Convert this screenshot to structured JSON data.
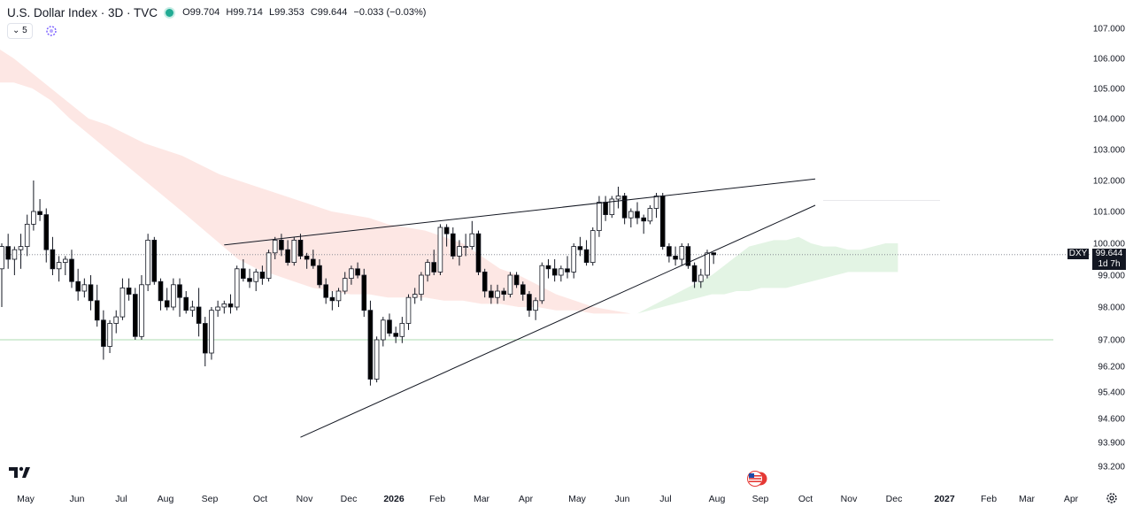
{
  "legend": {
    "symbol": "U.S. Dollar Index · 3D · TVC",
    "open": "O99.704",
    "high": "H99.714",
    "low": "L99.353",
    "close": "C99.644",
    "change": "−0.033 (−0.03%)",
    "interval_button": "5"
  },
  "price_badge": {
    "symbol": "DXY",
    "value": "99.644",
    "countdown": "1d 7h"
  },
  "icons": [
    "tradingview-logo-icon",
    "us-flag-event-icon",
    "settings-gear-icon",
    "indicator-spinner-icon",
    "chevron-down-icon"
  ],
  "colors": {
    "up_candle_fill": "#ffffff",
    "down_candle_fill": "#000000",
    "cloud_bear": "#fde7e4",
    "cloud_bull": "#e3f4e4",
    "lagging_line": "#4caf50",
    "trendline": "#131722"
  },
  "chart_data": {
    "type": "candlestick",
    "interval": "3D",
    "y_axis_ticks": [
      "107.000",
      "106.000",
      "105.000",
      "104.000",
      "103.000",
      "102.000",
      "101.000",
      "100.000",
      "99.000",
      "98.000",
      "97.000",
      "96.200",
      "95.400",
      "94.600",
      "93.900",
      "93.200"
    ],
    "x_axis_labels": [
      "May",
      "Jun",
      "Jul",
      "Aug",
      "Sep",
      "Oct",
      "Nov",
      "Dec",
      "2026",
      "Feb",
      "Mar",
      "Apr",
      "May",
      "Jun",
      "Jul",
      "Aug",
      "Sep",
      "Oct",
      "Nov",
      "Dec",
      "2027",
      "Feb",
      "Mar",
      "Apr"
    ],
    "last_price": 99.644,
    "horizontal_levels": [
      99.644,
      101.35,
      97.0
    ],
    "candles": [
      {
        "o": 99.2,
        "h": 100.0,
        "l": 98.0,
        "c": 99.9
      },
      {
        "o": 99.9,
        "h": 100.3,
        "l": 99.2,
        "c": 99.5
      },
      {
        "o": 99.5,
        "h": 99.9,
        "l": 99.0,
        "c": 99.8
      },
      {
        "o": 99.8,
        "h": 100.3,
        "l": 99.2,
        "c": 99.9
      },
      {
        "o": 99.9,
        "h": 100.9,
        "l": 99.6,
        "c": 100.6
      },
      {
        "o": 100.6,
        "h": 102.0,
        "l": 100.4,
        "c": 101.0
      },
      {
        "o": 101.0,
        "h": 101.4,
        "l": 100.7,
        "c": 100.9
      },
      {
        "o": 100.9,
        "h": 101.1,
        "l": 99.4,
        "c": 99.8
      },
      {
        "o": 99.8,
        "h": 100.2,
        "l": 99.0,
        "c": 99.2
      },
      {
        "o": 99.2,
        "h": 99.6,
        "l": 98.8,
        "c": 99.4
      },
      {
        "o": 99.4,
        "h": 99.6,
        "l": 99.0,
        "c": 99.5
      },
      {
        "o": 99.5,
        "h": 99.8,
        "l": 98.6,
        "c": 98.8
      },
      {
        "o": 98.8,
        "h": 99.2,
        "l": 98.2,
        "c": 98.5
      },
      {
        "o": 98.5,
        "h": 98.9,
        "l": 98.3,
        "c": 98.7
      },
      {
        "o": 98.7,
        "h": 99.0,
        "l": 97.9,
        "c": 98.2
      },
      {
        "o": 98.2,
        "h": 98.7,
        "l": 97.4,
        "c": 97.6
      },
      {
        "o": 97.6,
        "h": 97.9,
        "l": 96.4,
        "c": 96.8
      },
      {
        "o": 96.8,
        "h": 97.6,
        "l": 96.6,
        "c": 97.5
      },
      {
        "o": 97.5,
        "h": 97.9,
        "l": 97.2,
        "c": 97.7
      },
      {
        "o": 97.7,
        "h": 98.9,
        "l": 97.6,
        "c": 98.6
      },
      {
        "o": 98.6,
        "h": 98.9,
        "l": 98.2,
        "c": 98.4
      },
      {
        "o": 98.4,
        "h": 98.6,
        "l": 97.0,
        "c": 97.1
      },
      {
        "o": 97.1,
        "h": 99.0,
        "l": 97.0,
        "c": 98.7
      },
      {
        "o": 98.7,
        "h": 100.3,
        "l": 98.5,
        "c": 100.1
      },
      {
        "o": 100.1,
        "h": 100.2,
        "l": 98.7,
        "c": 98.8
      },
      {
        "o": 98.8,
        "h": 98.9,
        "l": 97.9,
        "c": 98.2
      },
      {
        "o": 98.2,
        "h": 98.6,
        "l": 97.9,
        "c": 98.0
      },
      {
        "o": 98.0,
        "h": 98.9,
        "l": 97.9,
        "c": 98.7
      },
      {
        "o": 98.7,
        "h": 98.9,
        "l": 97.7,
        "c": 98.3
      },
      {
        "o": 98.3,
        "h": 98.5,
        "l": 97.8,
        "c": 97.9
      },
      {
        "o": 97.9,
        "h": 98.2,
        "l": 97.7,
        "c": 98.0
      },
      {
        "o": 98.0,
        "h": 98.6,
        "l": 97.1,
        "c": 97.5
      },
      {
        "o": 97.5,
        "h": 97.7,
        "l": 96.2,
        "c": 96.6
      },
      {
        "o": 96.6,
        "h": 98.0,
        "l": 96.4,
        "c": 97.9
      },
      {
        "o": 97.9,
        "h": 98.2,
        "l": 97.7,
        "c": 98.0
      },
      {
        "o": 98.0,
        "h": 98.2,
        "l": 97.8,
        "c": 98.1
      },
      {
        "o": 98.1,
        "h": 98.4,
        "l": 97.8,
        "c": 98.0
      },
      {
        "o": 98.0,
        "h": 99.3,
        "l": 97.9,
        "c": 99.2
      },
      {
        "o": 99.2,
        "h": 99.5,
        "l": 98.8,
        "c": 98.9
      },
      {
        "o": 98.9,
        "h": 99.2,
        "l": 98.6,
        "c": 98.8
      },
      {
        "o": 98.8,
        "h": 99.2,
        "l": 98.5,
        "c": 99.1
      },
      {
        "o": 99.1,
        "h": 99.3,
        "l": 98.7,
        "c": 98.9
      },
      {
        "o": 98.9,
        "h": 99.8,
        "l": 98.8,
        "c": 99.7
      },
      {
        "o": 99.7,
        "h": 100.2,
        "l": 99.5,
        "c": 100.1
      },
      {
        "o": 100.1,
        "h": 100.3,
        "l": 99.6,
        "c": 99.8
      },
      {
        "o": 99.8,
        "h": 100.1,
        "l": 99.3,
        "c": 99.4
      },
      {
        "o": 99.4,
        "h": 100.2,
        "l": 99.3,
        "c": 100.1
      },
      {
        "o": 100.1,
        "h": 100.3,
        "l": 99.5,
        "c": 99.6
      },
      {
        "o": 99.6,
        "h": 99.7,
        "l": 99.2,
        "c": 99.5
      },
      {
        "o": 99.5,
        "h": 99.8,
        "l": 99.2,
        "c": 99.3
      },
      {
        "o": 99.3,
        "h": 99.5,
        "l": 98.6,
        "c": 98.7
      },
      {
        "o": 98.7,
        "h": 98.9,
        "l": 98.1,
        "c": 98.3
      },
      {
        "o": 98.3,
        "h": 98.5,
        "l": 97.9,
        "c": 98.2
      },
      {
        "o": 98.2,
        "h": 98.6,
        "l": 98.0,
        "c": 98.5
      },
      {
        "o": 98.5,
        "h": 99.1,
        "l": 98.4,
        "c": 98.9
      },
      {
        "o": 98.9,
        "h": 99.3,
        "l": 98.7,
        "c": 99.2
      },
      {
        "o": 99.2,
        "h": 99.4,
        "l": 98.9,
        "c": 99.0
      },
      {
        "o": 99.0,
        "h": 99.2,
        "l": 97.7,
        "c": 97.9
      },
      {
        "o": 97.9,
        "h": 98.2,
        "l": 95.6,
        "c": 95.8
      },
      {
        "o": 95.8,
        "h": 97.1,
        "l": 95.7,
        "c": 97.0
      },
      {
        "o": 97.0,
        "h": 97.7,
        "l": 96.8,
        "c": 97.6
      },
      {
        "o": 97.6,
        "h": 97.8,
        "l": 97.1,
        "c": 97.2
      },
      {
        "o": 97.2,
        "h": 97.4,
        "l": 96.9,
        "c": 97.1
      },
      {
        "o": 97.1,
        "h": 97.7,
        "l": 96.9,
        "c": 97.5
      },
      {
        "o": 97.5,
        "h": 98.4,
        "l": 97.3,
        "c": 98.3
      },
      {
        "o": 98.3,
        "h": 98.6,
        "l": 98.1,
        "c": 98.4
      },
      {
        "o": 98.4,
        "h": 99.1,
        "l": 98.2,
        "c": 99.0
      },
      {
        "o": 99.0,
        "h": 99.5,
        "l": 98.8,
        "c": 99.4
      },
      {
        "o": 99.4,
        "h": 99.8,
        "l": 99.0,
        "c": 99.1
      },
      {
        "o": 99.1,
        "h": 100.6,
        "l": 99.0,
        "c": 100.5
      },
      {
        "o": 100.5,
        "h": 100.6,
        "l": 99.9,
        "c": 100.3
      },
      {
        "o": 100.3,
        "h": 100.5,
        "l": 99.5,
        "c": 99.6
      },
      {
        "o": 99.6,
        "h": 100.1,
        "l": 99.3,
        "c": 99.9
      },
      {
        "o": 99.9,
        "h": 100.3,
        "l": 99.6,
        "c": 99.9
      },
      {
        "o": 99.9,
        "h": 100.7,
        "l": 99.8,
        "c": 100.3
      },
      {
        "o": 100.3,
        "h": 100.4,
        "l": 99.0,
        "c": 99.1
      },
      {
        "o": 99.1,
        "h": 99.2,
        "l": 98.3,
        "c": 98.5
      },
      {
        "o": 98.5,
        "h": 98.7,
        "l": 98.1,
        "c": 98.3
      },
      {
        "o": 98.3,
        "h": 98.7,
        "l": 98.1,
        "c": 98.5
      },
      {
        "o": 98.5,
        "h": 98.6,
        "l": 98.2,
        "c": 98.4
      },
      {
        "o": 98.4,
        "h": 99.1,
        "l": 98.3,
        "c": 99.0
      },
      {
        "o": 99.0,
        "h": 99.1,
        "l": 98.6,
        "c": 98.7
      },
      {
        "o": 98.7,
        "h": 98.8,
        "l": 98.2,
        "c": 98.4
      },
      {
        "o": 98.4,
        "h": 98.5,
        "l": 97.7,
        "c": 97.9
      },
      {
        "o": 97.9,
        "h": 98.3,
        "l": 97.6,
        "c": 98.2
      },
      {
        "o": 98.2,
        "h": 99.4,
        "l": 98.1,
        "c": 99.3
      },
      {
        "o": 99.3,
        "h": 99.5,
        "l": 98.9,
        "c": 99.2
      },
      {
        "o": 99.2,
        "h": 99.5,
        "l": 98.8,
        "c": 99.0
      },
      {
        "o": 99.0,
        "h": 99.3,
        "l": 98.8,
        "c": 99.2
      },
      {
        "o": 99.2,
        "h": 99.6,
        "l": 98.9,
        "c": 99.1
      },
      {
        "o": 99.1,
        "h": 100.0,
        "l": 98.9,
        "c": 99.9
      },
      {
        "o": 99.9,
        "h": 100.2,
        "l": 99.6,
        "c": 99.8
      },
      {
        "o": 99.8,
        "h": 100.1,
        "l": 99.3,
        "c": 99.4
      },
      {
        "o": 99.4,
        "h": 100.5,
        "l": 99.3,
        "c": 100.4
      },
      {
        "o": 100.4,
        "h": 101.5,
        "l": 100.2,
        "c": 101.3
      },
      {
        "o": 101.3,
        "h": 101.5,
        "l": 100.7,
        "c": 100.9
      },
      {
        "o": 100.9,
        "h": 101.5,
        "l": 100.8,
        "c": 101.4
      },
      {
        "o": 101.4,
        "h": 101.8,
        "l": 101.1,
        "c": 101.5
      },
      {
        "o": 101.5,
        "h": 101.6,
        "l": 100.6,
        "c": 100.8
      },
      {
        "o": 100.8,
        "h": 101.1,
        "l": 100.5,
        "c": 101.0
      },
      {
        "o": 101.0,
        "h": 101.3,
        "l": 100.6,
        "c": 100.8
      },
      {
        "o": 100.8,
        "h": 100.9,
        "l": 100.3,
        "c": 100.7
      },
      {
        "o": 100.7,
        "h": 101.2,
        "l": 100.6,
        "c": 101.1
      },
      {
        "o": 101.1,
        "h": 101.6,
        "l": 100.8,
        "c": 101.5
      },
      {
        "o": 101.5,
        "h": 101.6,
        "l": 99.8,
        "c": 99.9
      },
      {
        "o": 99.9,
        "h": 100.0,
        "l": 99.4,
        "c": 99.6
      },
      {
        "o": 99.6,
        "h": 99.9,
        "l": 99.3,
        "c": 99.5
      },
      {
        "o": 99.5,
        "h": 100.0,
        "l": 99.3,
        "c": 99.9
      },
      {
        "o": 99.9,
        "h": 100.0,
        "l": 99.2,
        "c": 99.3
      },
      {
        "o": 99.3,
        "h": 99.4,
        "l": 98.6,
        "c": 98.8
      },
      {
        "o": 98.8,
        "h": 99.2,
        "l": 98.6,
        "c": 99.0
      },
      {
        "o": 99.0,
        "h": 99.8,
        "l": 98.9,
        "c": 99.7
      },
      {
        "o": 99.704,
        "h": 99.714,
        "l": 99.353,
        "c": 99.644
      }
    ],
    "trendlines": [
      {
        "from": {
          "candle": 35,
          "price": 99.95
        },
        "to": {
          "candle": 128,
          "price": 102.05
        }
      },
      {
        "from": {
          "candle": 47,
          "price": 94.05
        },
        "to": {
          "candle": 128,
          "price": 101.2
        }
      }
    ],
    "ichimoku_cloud": {
      "bearish_span": {
        "from_candle": -4,
        "to_candle": 99,
        "top": [
          106.6,
          106.4,
          106.0,
          105.5,
          105.0,
          104.5,
          104.0,
          103.8,
          103.5,
          103.2,
          103.0,
          102.8,
          102.5,
          102.2,
          102.0,
          101.8,
          101.6,
          101.4,
          101.2,
          101.0,
          100.9,
          100.8,
          100.6,
          100.5,
          100.4,
          100.2,
          100.0,
          99.6,
          99.2,
          99.0,
          98.7,
          98.4,
          98.2,
          98.0,
          97.9,
          97.8
        ],
        "bottom": [
          105.2,
          105.2,
          105.2,
          105.0,
          104.6,
          104.0,
          103.5,
          103.0,
          102.5,
          102.0,
          101.5,
          101.0,
          100.5,
          100.0,
          99.5,
          99.2,
          99.0,
          98.8,
          98.6,
          98.5,
          98.4,
          98.4,
          98.3,
          98.3,
          98.3,
          98.2,
          98.2,
          98.1,
          98.1,
          98.0,
          98.0,
          97.9,
          97.9,
          97.8,
          97.8,
          97.8
        ]
      },
      "bullish_span": {
        "from_candle": 100,
        "to_candle": 141,
        "top": [
          97.8,
          98.0,
          98.2,
          98.4,
          98.6,
          98.8,
          99.0,
          99.3,
          99.6,
          99.9,
          100.0,
          100.1,
          100.1,
          100.2,
          100.0,
          99.9,
          99.9,
          99.8,
          99.8,
          99.9,
          100.0,
          100.0
        ],
        "bottom": [
          97.8,
          97.9,
          98.0,
          98.1,
          98.2,
          98.3,
          98.4,
          98.4,
          98.5,
          98.5,
          98.6,
          98.6,
          98.6,
          98.7,
          98.8,
          98.9,
          99.0,
          99.1,
          99.1,
          99.1,
          99.1,
          99.1
        ]
      }
    }
  }
}
